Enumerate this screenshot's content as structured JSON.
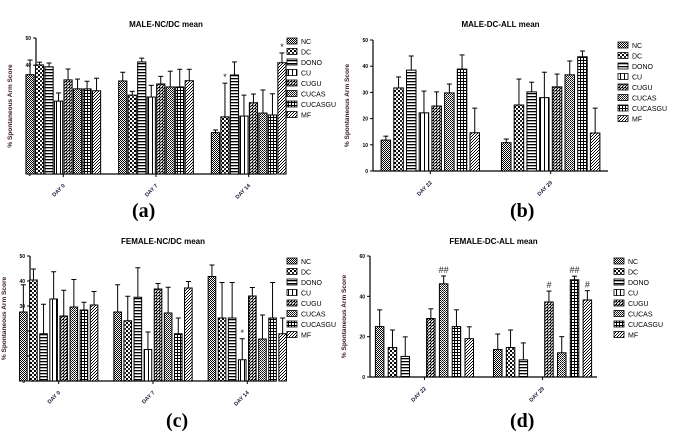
{
  "legend_labels": [
    "NC",
    "DC",
    "DONO",
    "CU",
    "CUGU",
    "CUCAS",
    "CUCASGU",
    "MF"
  ],
  "chart_data": [
    {
      "id": "a",
      "type": "bar",
      "title": "MALE-NC/DC mean",
      "caption": "(a)",
      "xlabel": "",
      "ylabel": "% Spontaneous Arm Score",
      "ylim": [
        0,
        50
      ],
      "yticks": [
        0,
        10,
        20,
        30,
        40,
        50
      ],
      "categories": [
        "DAY 0",
        "DAY 7",
        "DAY 14"
      ],
      "legend": "right",
      "series": [
        {
          "name": "NC",
          "values": [
            36.5,
            34.2,
            15.2
          ],
          "errors": [
            5.4,
            3.2,
            1.0
          ],
          "marks": [
            "",
            "",
            ""
          ]
        },
        {
          "name": "DC",
          "values": [
            40.1,
            29.0,
            21.0
          ],
          "errors": [
            1.0,
            1.4,
            12.4
          ],
          "marks": [
            "",
            "",
            "*"
          ]
        },
        {
          "name": "DONO",
          "values": [
            39.4,
            41.2,
            36.4
          ],
          "errors": [
            1.4,
            1.4,
            4.8
          ],
          "marks": [
            "",
            "",
            ""
          ]
        },
        {
          "name": "CU",
          "values": [
            26.8,
            28.3,
            21.3
          ],
          "errors": [
            3.0,
            4.3,
            7.7
          ],
          "marks": [
            "",
            "",
            ""
          ]
        },
        {
          "name": "CUGU",
          "values": [
            34.6,
            33.1,
            26.2
          ],
          "errors": [
            4.0,
            2.8,
            3.2
          ],
          "marks": [
            "",
            "",
            ""
          ]
        },
        {
          "name": "CUCAS",
          "values": [
            31.3,
            32.0,
            22.4
          ],
          "errors": [
            3.6,
            5.8,
            8.5
          ],
          "marks": [
            "",
            "",
            ""
          ]
        },
        {
          "name": "CUCASGU",
          "values": [
            31.3,
            32.0,
            21.7
          ],
          "errors": [
            2.8,
            6.5,
            7.8
          ],
          "marks": [
            "",
            "",
            ""
          ]
        },
        {
          "name": "MF",
          "values": [
            30.6,
            34.3,
            40.9
          ],
          "errors": [
            4.6,
            4.2,
            3.6
          ],
          "marks": [
            "",
            "",
            "*"
          ]
        }
      ]
    },
    {
      "id": "b",
      "type": "bar",
      "title": "MALE-DC-ALL mean",
      "caption": "(b)",
      "xlabel": "",
      "ylabel": "% Spontaneous Arm Score",
      "ylim": [
        0,
        50
      ],
      "yticks": [
        0,
        10,
        20,
        30,
        40,
        50
      ],
      "categories": [
        "DAY 22",
        "DAY 29"
      ],
      "legend": "right",
      "series": [
        {
          "name": "NC",
          "values": [
            11.8,
            10.8
          ],
          "errors": [
            1.5,
            1.4
          ],
          "marks": [
            "",
            ""
          ]
        },
        {
          "name": "DC",
          "values": [
            31.7,
            25.2
          ],
          "errors": [
            4.2,
            9.9
          ],
          "marks": [
            "",
            ""
          ]
        },
        {
          "name": "DONO",
          "values": [
            38.5,
            30.2
          ],
          "errors": [
            5.4,
            3.7
          ],
          "marks": [
            "",
            ""
          ]
        },
        {
          "name": "CU",
          "values": [
            22.2,
            28.0
          ],
          "errors": [
            8.3,
            9.7
          ],
          "marks": [
            "",
            ""
          ]
        },
        {
          "name": "CUGU",
          "values": [
            24.8,
            32.1
          ],
          "errors": [
            5.4,
            4.9
          ],
          "marks": [
            "",
            ""
          ]
        },
        {
          "name": "CUCAS",
          "values": [
            29.8,
            36.7
          ],
          "errors": [
            3.4,
            5.3
          ],
          "marks": [
            "",
            ""
          ]
        },
        {
          "name": "CUCASGU",
          "values": [
            38.9,
            43.6
          ],
          "errors": [
            5.4,
            2.2
          ],
          "marks": [
            "",
            ""
          ]
        },
        {
          "name": "MF",
          "values": [
            14.6,
            14.5
          ],
          "errors": [
            9.4,
            9.5
          ],
          "marks": [
            "",
            ""
          ]
        }
      ]
    },
    {
      "id": "c",
      "type": "bar",
      "title": "FEMALE-NC/DC mean",
      "caption": "(c)",
      "xlabel": "",
      "ylabel": "% Spontaneous Arm Score",
      "ylim": [
        0,
        50
      ],
      "yticks": [
        0,
        10,
        20,
        30,
        40,
        50
      ],
      "categories": [
        "DAY 0",
        "DAY 7",
        "DAY 14"
      ],
      "legend": "right",
      "series": [
        {
          "name": "NC",
          "values": [
            27.6,
            27.6,
            41.8
          ],
          "errors": [
            10.9,
            10.9,
            4.6
          ],
          "marks": [
            "",
            "",
            ""
          ]
        },
        {
          "name": "DC",
          "values": [
            40.4,
            24.1,
            25.2
          ],
          "errors": [
            4.4,
            9.8,
            14.2
          ],
          "marks": [
            "",
            "",
            ""
          ]
        },
        {
          "name": "DONO",
          "values": [
            18.9,
            33.5,
            25.2
          ],
          "errors": [
            11.8,
            11.8,
            14.2
          ],
          "marks": [
            "",
            "",
            ""
          ]
        },
        {
          "name": "CU",
          "values": [
            32.8,
            12.6,
            8.5
          ],
          "errors": [
            10.9,
            7.0,
            8.4
          ],
          "marks": [
            "",
            "",
            "*"
          ]
        },
        {
          "name": "CUGU",
          "values": [
            26.0,
            36.8,
            34.0
          ],
          "errors": [
            10.3,
            2.2,
            3.4
          ],
          "marks": [
            "",
            "",
            ""
          ]
        },
        {
          "name": "CUCAS",
          "values": [
            29.6,
            27.2,
            16.8
          ],
          "errors": [
            11.0,
            10.3,
            9.6
          ],
          "marks": [
            "",
            "",
            ""
          ]
        },
        {
          "name": "CUCASGU",
          "values": [
            28.4,
            18.9,
            25.2
          ],
          "errors": [
            3.1,
            6.3,
            14.2
          ],
          "marks": [
            "",
            "",
            ""
          ]
        },
        {
          "name": "MF",
          "values": [
            30.4,
            37.2,
            18.9
          ],
          "errors": [
            5.4,
            2.6,
            6.3
          ],
          "marks": [
            "",
            "",
            ""
          ]
        }
      ]
    },
    {
      "id": "d",
      "type": "bar",
      "title": "FEMALE-DC-ALL mean",
      "caption": "(d)",
      "xlabel": "",
      "ylabel": "% Spontaneous Arm Score",
      "ylim": [
        0,
        60
      ],
      "yticks": [
        0,
        20,
        40,
        60
      ],
      "categories": [
        "DAY 22",
        "DAY 29"
      ],
      "legend": "right",
      "series": [
        {
          "name": "NC",
          "values": [
            25.0,
            13.6
          ],
          "errors": [
            8.3,
            7.7
          ],
          "marks": [
            "",
            ""
          ]
        },
        {
          "name": "DC",
          "values": [
            14.6,
            14.6
          ],
          "errors": [
            8.7,
            8.7
          ],
          "marks": [
            "",
            ""
          ]
        },
        {
          "name": "DONO",
          "values": [
            10.2,
            8.5
          ],
          "errors": [
            9.7,
            8.4
          ],
          "marks": [
            "",
            ""
          ]
        },
        {
          "name": "CU",
          "values": [
            0,
            0
          ],
          "errors": [
            0,
            0
          ],
          "marks": [
            "",
            ""
          ]
        },
        {
          "name": "CUGU",
          "values": [
            29.0,
            37.2
          ],
          "errors": [
            4.8,
            5.4
          ],
          "marks": [
            "",
            "#"
          ]
        },
        {
          "name": "CUCAS",
          "values": [
            46.2,
            12.0
          ],
          "errors": [
            3.9,
            8.0
          ],
          "marks": [
            "##",
            ""
          ]
        },
        {
          "name": "CUCASGU",
          "values": [
            25.0,
            48.2
          ],
          "errors": [
            8.3,
            1.8
          ],
          "marks": [
            "",
            "##"
          ]
        },
        {
          "name": "MF",
          "values": [
            19.0,
            38.2
          ],
          "errors": [
            5.9,
            4.6
          ],
          "marks": [
            "",
            "#"
          ]
        }
      ]
    }
  ]
}
